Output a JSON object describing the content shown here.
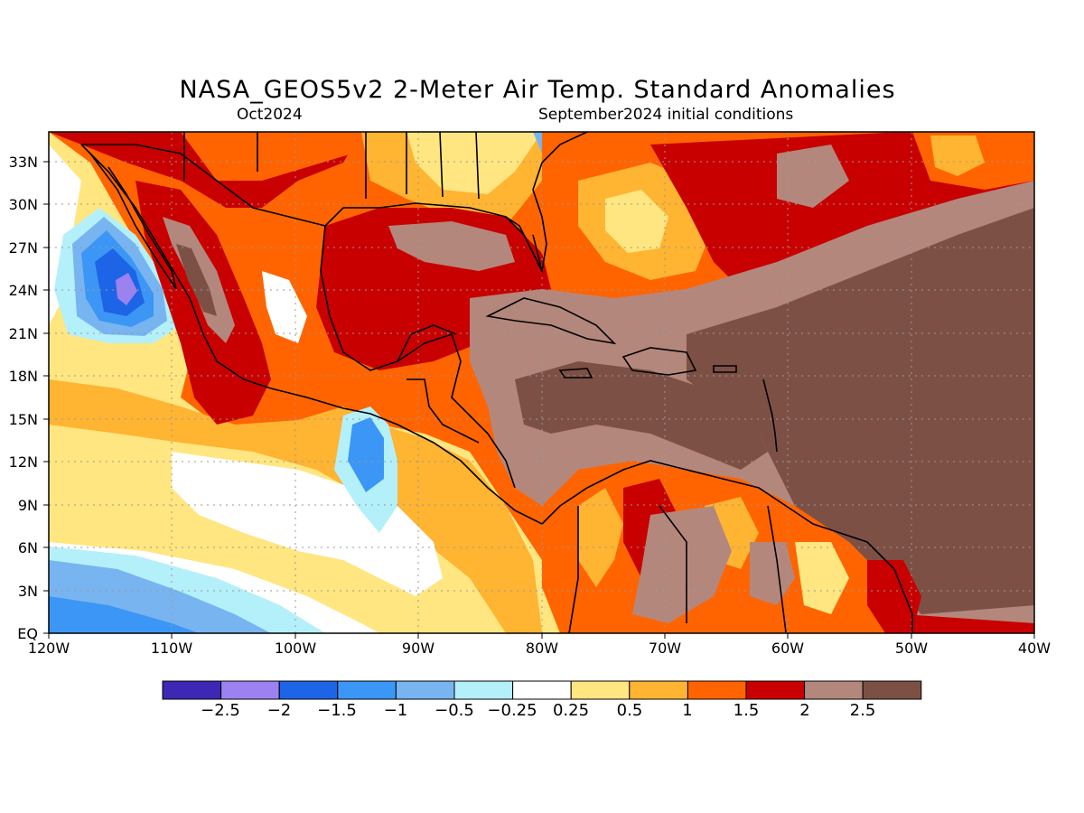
{
  "title": "NASA_GEOS5v2 2-Meter Air Temp. Standard Anomalies",
  "subtitle_left": "Oct2024",
  "subtitle_right": "September2024 initial conditions",
  "map": {
    "lat_labels": [
      "33N",
      "30N",
      "27N",
      "24N",
      "21N",
      "18N",
      "15N",
      "12N",
      "9N",
      "6N",
      "3N",
      "EQ"
    ],
    "lon_labels": [
      "120W",
      "110W",
      "100W",
      "90W",
      "80W",
      "70W",
      "60W",
      "50W",
      "40W"
    ],
    "lat_range": [
      0,
      35
    ],
    "lon_range": [
      -120,
      -40
    ],
    "grid": true
  },
  "colorbar": {
    "colors": [
      "#3c28b4",
      "#9c82f0",
      "#1e64e6",
      "#3c96f5",
      "#78b4f0",
      "#b4f0fa",
      "#ffffff",
      "#ffe680",
      "#ffb432",
      "#ff6400",
      "#c80000",
      "#b4877d",
      "#7d5046"
    ],
    "labels": [
      "-2.5",
      "-2",
      "-1.5",
      "-1",
      "-0.5",
      "-0.25",
      "0.25",
      "0.5",
      "1",
      "1.5",
      "2",
      "2.5"
    ]
  }
}
